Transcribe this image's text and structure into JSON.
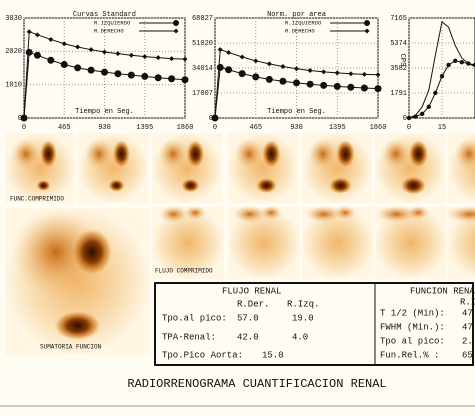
{
  "charts": [
    {
      "type": "line",
      "title": "Curvas Standard",
      "x_label": "Tiempo en Seg.",
      "xlim": [
        0,
        1860
      ],
      "xticks": [
        0,
        465,
        930,
        1395,
        1860
      ],
      "ylim": [
        0,
        3030
      ],
      "yticks": [
        0,
        1010,
        2020,
        3030
      ],
      "x": [
        0,
        60,
        155,
        310,
        465,
        620,
        775,
        930,
        1085,
        1240,
        1395,
        1550,
        1705,
        1860
      ],
      "series": [
        {
          "name": "R.IZQUIERDO",
          "color": "#111111",
          "marker": "circle",
          "values": [
            0,
            1990,
            1900,
            1750,
            1620,
            1520,
            1450,
            1390,
            1340,
            1300,
            1260,
            1220,
            1190,
            1160
          ]
        },
        {
          "name": "R.DERECHO",
          "color": "#111111",
          "marker": "diamond",
          "values": [
            0,
            2615,
            2520,
            2380,
            2250,
            2150,
            2070,
            2000,
            1950,
            1900,
            1860,
            1830,
            1800,
            1785
          ]
        }
      ]
    },
    {
      "type": "line",
      "title": "Norm. por area",
      "x_label": "Tiempo en Seg.",
      "xlim": [
        0,
        1860
      ],
      "xticks": [
        0,
        465,
        930,
        1395,
        1860
      ],
      "ylim": [
        0,
        68027
      ],
      "yticks": [
        0,
        17007,
        34014,
        51020,
        68027
      ],
      "x": [
        0,
        60,
        155,
        310,
        465,
        620,
        775,
        930,
        1085,
        1240,
        1395,
        1550,
        1705,
        1860
      ],
      "series": [
        {
          "name": "R.IZQUIERDO",
          "color": "#111111",
          "marker": "circle",
          "values": [
            0,
            34400,
            32800,
            30200,
            28000,
            26300,
            25000,
            23900,
            23000,
            22200,
            21500,
            20900,
            20400,
            20000
          ]
        },
        {
          "name": "R.DERECHO",
          "color": "#111111",
          "marker": "diamond",
          "values": [
            0,
            46500,
            44600,
            41500,
            38900,
            36800,
            35000,
            33500,
            32300,
            31400,
            30700,
            30100,
            29700,
            29400
          ]
        }
      ]
    },
    {
      "type": "line",
      "y_label": "CPS",
      "xlim": [
        0,
        30
      ],
      "xticks": [
        0,
        15
      ],
      "ylim": [
        0,
        7165
      ],
      "yticks": [
        0,
        1791,
        3582,
        5374,
        7165
      ],
      "x": [
        0,
        3,
        6,
        9,
        12,
        15,
        18,
        21,
        24,
        27,
        30
      ],
      "series": [
        {
          "color": "#111111",
          "marker": "circle",
          "values": [
            0,
            100,
            300,
            800,
            1800,
            3000,
            3800,
            4100,
            4000,
            3900,
            3800
          ]
        },
        {
          "color": "#111111",
          "marker": "none",
          "values": [
            0,
            200,
            800,
            2000,
            4500,
            6900,
            6500,
            5200,
            4300,
            3900,
            3700
          ]
        }
      ]
    }
  ],
  "images": {
    "func": "FUNC.COMPRIMIDO",
    "flujo": "FLUJO COMPRIMIDO",
    "sum": "SUMATORIA FUNCION"
  },
  "flujo": {
    "title": "FLUJO RENAL",
    "headers": [
      "R.Der.",
      "R.Izq."
    ],
    "rows": [
      [
        "Tpo.al pico:",
        "57.0",
        "19.0"
      ],
      [
        "TPA-Renal:",
        "42.0",
        "4.0"
      ],
      [
        "Tpo.Pico Aorta:",
        "15.0"
      ]
    ]
  },
  "funcion": {
    "title": "FUNCION RENA",
    "header": "R.I",
    "rows": [
      [
        "T 1/2 (Min):",
        "47"
      ],
      [
        "FWHM (Min.):",
        "47"
      ],
      [
        "Tpo al pico:",
        "2."
      ],
      [
        "Fun.Rel.% :",
        "65"
      ]
    ]
  },
  "footer": "RADIORRENOGRAMA CUANTIFICACION RENAL"
}
